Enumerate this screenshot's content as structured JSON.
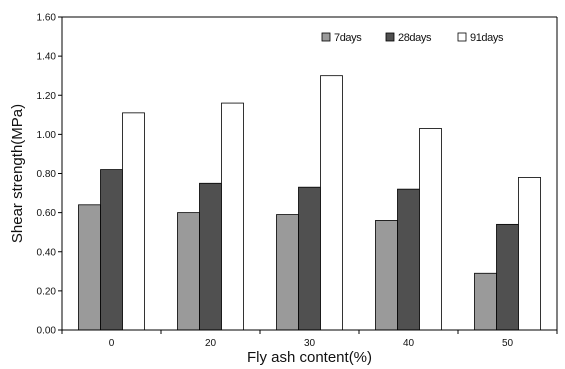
{
  "chart_data": {
    "type": "bar",
    "categories": [
      "0",
      "20",
      "30",
      "40",
      "50"
    ],
    "series": [
      {
        "name": "7days",
        "values": [
          0.64,
          0.6,
          0.59,
          0.56,
          0.29
        ]
      },
      {
        "name": "28days",
        "values": [
          0.82,
          0.75,
          0.73,
          0.72,
          0.54
        ]
      },
      {
        "name": "91days",
        "values": [
          1.11,
          1.16,
          1.3,
          1.03,
          0.78
        ]
      }
    ],
    "xlabel": "Fly ash content(%)",
    "ylabel": "Shear strength(MPa)",
    "ylim": [
      0,
      1.6
    ],
    "yticks": [
      "0.00",
      "0.20",
      "0.40",
      "0.60",
      "0.80",
      "1.00",
      "1.20",
      "1.40",
      "1.60"
    ],
    "grid": false,
    "legend": "top-right",
    "colors": {
      "7days": "#9a9a9a",
      "28days": "#505050",
      "91days": "#ffffff",
      "stroke": "#000000"
    }
  }
}
